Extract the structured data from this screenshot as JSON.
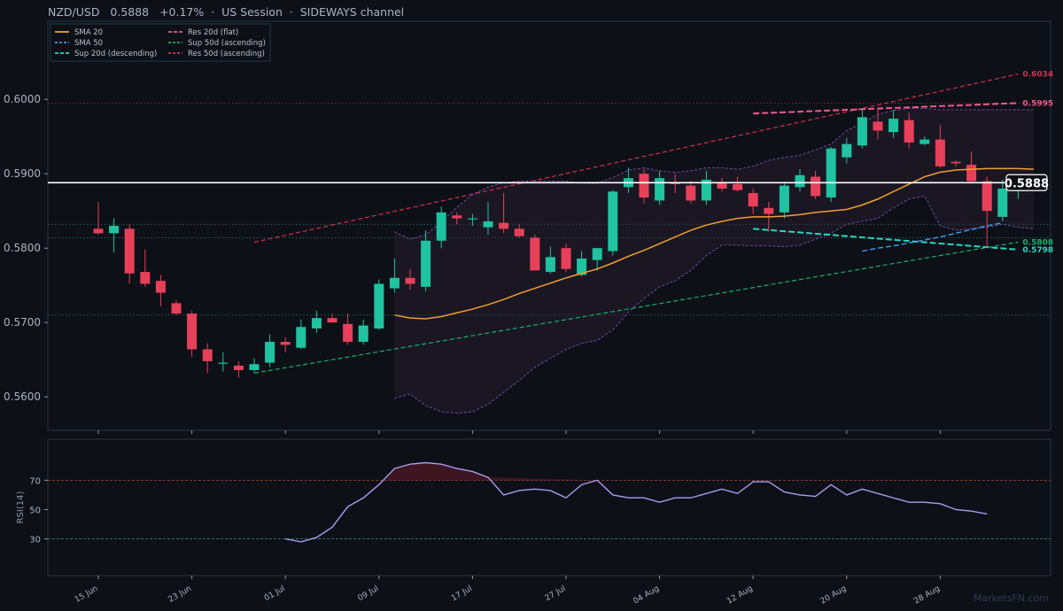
{
  "header": {
    "symbol": "NZD/USD",
    "price": "0.5888",
    "change": "+0.17%",
    "session": "US Session",
    "regime": "SIDEWAYS channel"
  },
  "watermark": "MarketsFN.com",
  "colors": {
    "background": "#0d1017",
    "bull": "#1fc3a0",
    "bear": "#e8405a",
    "sma20": "#f0a030",
    "sma50": "#3a9be8",
    "sup20": "#2dd4bf",
    "sup50": "#18b070",
    "res20": "#ec5a8c",
    "res50": "#d03050",
    "rsi": "#a99cf0",
    "band": "#7a4fb0",
    "price_line": "#ffffff"
  },
  "chart_data": [
    {
      "type": "candlestick",
      "title": "NZD/USD",
      "ylim": [
        0.5555,
        0.6105
      ],
      "yticks": [
        "0.5600",
        "0.5700",
        "0.5800",
        "0.5900",
        "0.6000"
      ],
      "x_ticks": [
        {
          "label": "15 Jun",
          "index": 0
        },
        {
          "label": "23 Jun",
          "index": 6
        },
        {
          "label": "01 Jul",
          "index": 12
        },
        {
          "label": "09 Jul",
          "index": 18
        },
        {
          "label": "17 Jul",
          "index": 24
        },
        {
          "label": "27 Jul",
          "index": 30
        },
        {
          "label": "04 Aug",
          "index": 36
        },
        {
          "label": "12 Aug",
          "index": 42
        },
        {
          "label": "20 Aug",
          "index": 48
        },
        {
          "label": "28 Aug",
          "index": 54
        }
      ],
      "candles": [
        [
          0.5826,
          0.5862,
          0.5818,
          0.582
        ],
        [
          0.582,
          0.584,
          0.5794,
          0.583
        ],
        [
          0.5826,
          0.5832,
          0.5752,
          0.5766
        ],
        [
          0.5768,
          0.5798,
          0.5748,
          0.5752
        ],
        [
          0.5756,
          0.5764,
          0.5722,
          0.574
        ],
        [
          0.5726,
          0.573,
          0.571,
          0.5712
        ],
        [
          0.5712,
          0.5716,
          0.5654,
          0.5664
        ],
        [
          0.5664,
          0.5672,
          0.5632,
          0.5648
        ],
        [
          0.5646,
          0.566,
          0.5634,
          0.5646
        ],
        [
          0.5642,
          0.5648,
          0.5626,
          0.5636
        ],
        [
          0.5636,
          0.5652,
          0.5632,
          0.5644
        ],
        [
          0.5646,
          0.5684,
          0.564,
          0.5674
        ],
        [
          0.5674,
          0.568,
          0.566,
          0.567
        ],
        [
          0.5666,
          0.5704,
          0.5664,
          0.5694
        ],
        [
          0.5692,
          0.5716,
          0.5686,
          0.5706
        ],
        [
          0.5706,
          0.5712,
          0.57,
          0.57
        ],
        [
          0.5698,
          0.5712,
          0.567,
          0.5674
        ],
        [
          0.5674,
          0.5704,
          0.567,
          0.5696
        ],
        [
          0.5692,
          0.5758,
          0.569,
          0.5752
        ],
        [
          0.5746,
          0.5786,
          0.574,
          0.576
        ],
        [
          0.576,
          0.5772,
          0.5744,
          0.5752
        ],
        [
          0.5748,
          0.5824,
          0.5742,
          0.581
        ],
        [
          0.581,
          0.5856,
          0.58,
          0.5848
        ],
        [
          0.5844,
          0.5848,
          0.5832,
          0.584
        ],
        [
          0.584,
          0.5846,
          0.583,
          0.584
        ],
        [
          0.5828,
          0.5862,
          0.5818,
          0.5836
        ],
        [
          0.5834,
          0.5874,
          0.582,
          0.5826
        ],
        [
          0.5826,
          0.5832,
          0.5814,
          0.5816
        ],
        [
          0.5814,
          0.5818,
          0.577,
          0.577
        ],
        [
          0.5768,
          0.5802,
          0.5766,
          0.5788
        ],
        [
          0.58,
          0.5806,
          0.5768,
          0.5772
        ],
        [
          0.5764,
          0.5796,
          0.5762,
          0.5786
        ],
        [
          0.5784,
          0.58,
          0.577,
          0.58
        ],
        [
          0.5796,
          0.5878,
          0.579,
          0.5876
        ],
        [
          0.5882,
          0.5908,
          0.5874,
          0.5894
        ],
        [
          0.59,
          0.5906,
          0.586,
          0.5868
        ],
        [
          0.5864,
          0.5904,
          0.5858,
          0.5894
        ],
        [
          0.5888,
          0.59,
          0.5874,
          0.5886
        ],
        [
          0.5884,
          0.589,
          0.586,
          0.5864
        ],
        [
          0.5864,
          0.5904,
          0.5858,
          0.5892
        ],
        [
          0.5888,
          0.5894,
          0.5876,
          0.588
        ],
        [
          0.5886,
          0.5896,
          0.5876,
          0.5878
        ],
        [
          0.5874,
          0.588,
          0.5846,
          0.5856
        ],
        [
          0.5854,
          0.5862,
          0.5822,
          0.5846
        ],
        [
          0.5848,
          0.5888,
          0.584,
          0.5884
        ],
        [
          0.5882,
          0.5906,
          0.5876,
          0.5898
        ],
        [
          0.5896,
          0.5904,
          0.5866,
          0.587
        ],
        [
          0.5868,
          0.5936,
          0.5862,
          0.5934
        ],
        [
          0.5922,
          0.5948,
          0.5914,
          0.594
        ],
        [
          0.5938,
          0.5988,
          0.5934,
          0.5976
        ],
        [
          0.597,
          0.5986,
          0.5946,
          0.5958
        ],
        [
          0.5956,
          0.5986,
          0.5948,
          0.5974
        ],
        [
          0.5972,
          0.5982,
          0.5934,
          0.5942
        ],
        [
          0.594,
          0.595,
          0.5938,
          0.5946
        ],
        [
          0.5946,
          0.5966,
          0.5908,
          0.591
        ],
        [
          0.5916,
          0.5918,
          0.591,
          0.5914
        ],
        [
          0.5912,
          0.593,
          0.5888,
          0.589
        ],
        [
          0.589,
          0.5896,
          0.58,
          0.585
        ],
        [
          0.5842,
          0.5892,
          0.5836,
          0.588
        ],
        [
          0.588,
          0.5898,
          0.5866,
          0.5884
        ]
      ],
      "series": [
        {
          "name": "SMA 20",
          "start": 19,
          "values": [
            0.571,
            0.5706,
            0.5705,
            0.5708,
            0.5713,
            0.5718,
            0.5724,
            0.5731,
            0.5739,
            0.5746,
            0.5753,
            0.576,
            0.5766,
            0.5772,
            0.578,
            0.5789,
            0.5797,
            0.5806,
            0.5815,
            0.5824,
            0.5831,
            0.5836,
            0.584,
            0.5842,
            0.5842,
            0.5843,
            0.5845,
            0.5848,
            0.585,
            0.5852,
            0.5858,
            0.5866,
            0.5876,
            0.5886,
            0.5896,
            0.5902,
            0.5905,
            0.5906,
            0.5907,
            0.5907,
            0.5907,
            0.5906
          ]
        },
        {
          "name": "SMA 50",
          "start": 49,
          "values": [
            0.5796,
            0.58,
            0.5803,
            0.5807,
            0.5811,
            0.5815,
            0.582,
            0.5825,
            0.583,
            0.5834
          ]
        },
        {
          "name": "Sup 20d (descending)",
          "start": 42,
          "values": [
            0.5826,
            0.5798
          ]
        },
        {
          "name": "Sup 50d (ascending)",
          "start": 10,
          "values": [
            0.5632,
            0.5808
          ]
        },
        {
          "name": "Res 20d (flat)",
          "start": 42,
          "values": [
            0.5981,
            0.5995
          ]
        },
        {
          "name": "Res 50d (ascending)",
          "start": 10,
          "values": [
            0.5808,
            0.6034
          ]
        }
      ],
      "bollinger": {
        "start": 19,
        "upper": [
          0.5822,
          0.5812,
          0.5818,
          0.5835,
          0.5855,
          0.5872,
          0.5882,
          0.5888,
          0.589,
          0.589,
          0.589,
          0.589,
          0.5887,
          0.5887,
          0.5895,
          0.5905,
          0.5908,
          0.5904,
          0.5902,
          0.5904,
          0.5908,
          0.5908,
          0.5906,
          0.591,
          0.5918,
          0.5922,
          0.5925,
          0.5932,
          0.594,
          0.5958,
          0.5968,
          0.598,
          0.5985,
          0.5988,
          0.5988,
          0.5986,
          0.5986,
          0.5986,
          0.5986,
          0.5986,
          0.5986,
          0.5986
        ],
        "lower": [
          0.5598,
          0.5604,
          0.5588,
          0.558,
          0.5578,
          0.558,
          0.559,
          0.5606,
          0.5622,
          0.564,
          0.5652,
          0.5664,
          0.5672,
          0.5676,
          0.569,
          0.5714,
          0.5732,
          0.5748,
          0.5756,
          0.577,
          0.579,
          0.5804,
          0.5804,
          0.5803,
          0.5803,
          0.5802,
          0.5804,
          0.5812,
          0.582,
          0.5832,
          0.5836,
          0.584,
          0.5854,
          0.5866,
          0.587,
          0.583,
          0.5824,
          0.5826,
          0.5828,
          0.5832,
          0.5828,
          0.5826
        ]
      },
      "hlines": [
        0.5995,
        0.5888,
        0.5832,
        0.5814,
        0.571
      ],
      "current_price": "0.5888",
      "level_labels": [
        {
          "text": "0.6034",
          "value": 0.6034,
          "color": "#d03050"
        },
        {
          "text": "0.5995",
          "value": 0.5995,
          "color": "#ec5a8c"
        },
        {
          "text": "0.5808",
          "value": 0.5808,
          "color": "#18b070"
        },
        {
          "text": "0.5798",
          "value": 0.5798,
          "color": "#2dd4bf"
        }
      ],
      "legend": {
        "placement": "top-left",
        "columns": 2
      }
    },
    {
      "type": "line",
      "ylabel": "RSI(14)",
      "ylim": [
        5,
        98
      ],
      "yticks": [
        30,
        50,
        70
      ],
      "overbought": 70,
      "oversold": 30,
      "start": 12,
      "values": [
        30,
        28,
        31,
        38,
        52,
        58,
        67,
        78,
        81,
        82,
        81,
        78,
        76,
        72,
        60,
        63,
        64,
        63,
        58,
        67,
        70,
        60,
        58,
        58,
        55,
        58,
        58,
        61,
        64,
        61,
        69,
        69,
        62,
        60,
        59,
        67,
        60,
        64,
        61,
        58,
        55,
        55,
        54,
        50,
        49,
        47
      ]
    }
  ]
}
